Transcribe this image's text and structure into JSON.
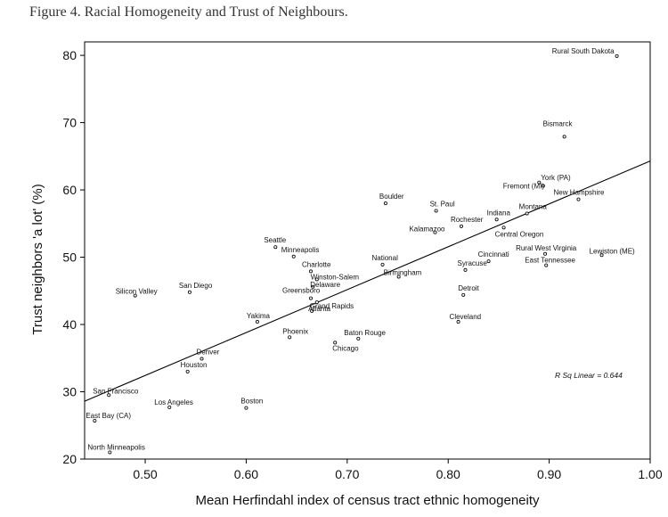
{
  "figure_title": "Figure 4.  Racial Homogeneity and Trust of Neighbours.",
  "chart_data": {
    "type": "scatter",
    "xlabel": "Mean Herfindahl index of census tract ethnic homogeneity",
    "ylabel": "Trust neighbors 'a lot' (%)",
    "xlim": [
      0.44,
      1.0
    ],
    "ylim": [
      20,
      82
    ],
    "xticks": [
      "0.50",
      "0.60",
      "0.70",
      "0.80",
      "0.90",
      "1.00"
    ],
    "xtick_values": [
      0.5,
      0.6,
      0.7,
      0.8,
      0.9,
      1.0
    ],
    "yticks": [
      "20",
      "30",
      "40",
      "50",
      "60",
      "70",
      "80"
    ],
    "ytick_values": [
      20,
      30,
      40,
      50,
      60,
      70,
      80
    ],
    "grid": false,
    "fit_line": {
      "x": [
        0.44,
        1.0
      ],
      "y": [
        28.6,
        64.3
      ]
    },
    "annotation": "R Sq Linear = 0.644",
    "points": [
      {
        "label": "Rural South Dakota",
        "x": 0.967,
        "y": 79.9
      },
      {
        "label": "Bismarck",
        "x": 0.915,
        "y": 67.9
      },
      {
        "label": "York (PA)",
        "x": 0.89,
        "y": 61.1
      },
      {
        "label": "Fremont (MI)",
        "x": 0.894,
        "y": 60.6
      },
      {
        "label": "New Hampshire",
        "x": 0.929,
        "y": 58.6
      },
      {
        "label": "Montana",
        "x": 0.878,
        "y": 56.5
      },
      {
        "label": "Indiana",
        "x": 0.848,
        "y": 55.6
      },
      {
        "label": "Central Oregon",
        "x": 0.855,
        "y": 54.4
      },
      {
        "label": "Boulder",
        "x": 0.738,
        "y": 58.0
      },
      {
        "label": "St. Paul",
        "x": 0.788,
        "y": 56.9
      },
      {
        "label": "Rochester",
        "x": 0.813,
        "y": 54.6
      },
      {
        "label": "Kalamazoo",
        "x": 0.787,
        "y": 53.7
      },
      {
        "label": "Rural West Virginia",
        "x": 0.896,
        "y": 50.5
      },
      {
        "label": "Lewiston (ME)",
        "x": 0.952,
        "y": 50.3
      },
      {
        "label": "Cincinnati",
        "x": 0.84,
        "y": 49.4
      },
      {
        "label": "East Tennessee",
        "x": 0.897,
        "y": 48.8
      },
      {
        "label": "Syracuse",
        "x": 0.817,
        "y": 48.1
      },
      {
        "label": "Seattle",
        "x": 0.629,
        "y": 51.5
      },
      {
        "label": "Minneapolis",
        "x": 0.647,
        "y": 50.1
      },
      {
        "label": "National",
        "x": 0.735,
        "y": 48.9
      },
      {
        "label": "Charlotte",
        "x": 0.664,
        "y": 47.9
      },
      {
        "label": "Birmingham",
        "x": 0.751,
        "y": 47.1
      },
      {
        "label": "Winston-Salem",
        "x": 0.67,
        "y": 46.7
      },
      {
        "label": "Delaware",
        "x": 0.666,
        "y": 45.6
      },
      {
        "label": "Detroit",
        "x": 0.815,
        "y": 44.4
      },
      {
        "label": "Greensboro",
        "x": 0.664,
        "y": 43.9
      },
      {
        "label": "Grand Rapids",
        "x": 0.67,
        "y": 43.3
      },
      {
        "label": "Atlanta",
        "x": 0.665,
        "y": 42.0
      },
      {
        "label": "Cleveland",
        "x": 0.81,
        "y": 40.4
      },
      {
        "label": "Silicon Valley",
        "x": 0.49,
        "y": 44.3
      },
      {
        "label": "San Diego",
        "x": 0.544,
        "y": 44.8
      },
      {
        "label": "Yakima",
        "x": 0.611,
        "y": 40.4
      },
      {
        "label": "Phoenix",
        "x": 0.643,
        "y": 38.1
      },
      {
        "label": "Baton Rouge",
        "x": 0.711,
        "y": 37.9
      },
      {
        "label": "Chicago",
        "x": 0.688,
        "y": 37.3
      },
      {
        "label": "Denver",
        "x": 0.556,
        "y": 34.9
      },
      {
        "label": "Houston",
        "x": 0.542,
        "y": 33.0
      },
      {
        "label": "San Francisco",
        "x": 0.464,
        "y": 29.5
      },
      {
        "label": "Los Angeles",
        "x": 0.524,
        "y": 27.7
      },
      {
        "label": "Boston",
        "x": 0.6,
        "y": 27.6
      },
      {
        "label": "East Bay (CA)",
        "x": 0.45,
        "y": 25.7
      },
      {
        "label": "North Minneapolis",
        "x": 0.465,
        "y": 21.0
      }
    ]
  }
}
